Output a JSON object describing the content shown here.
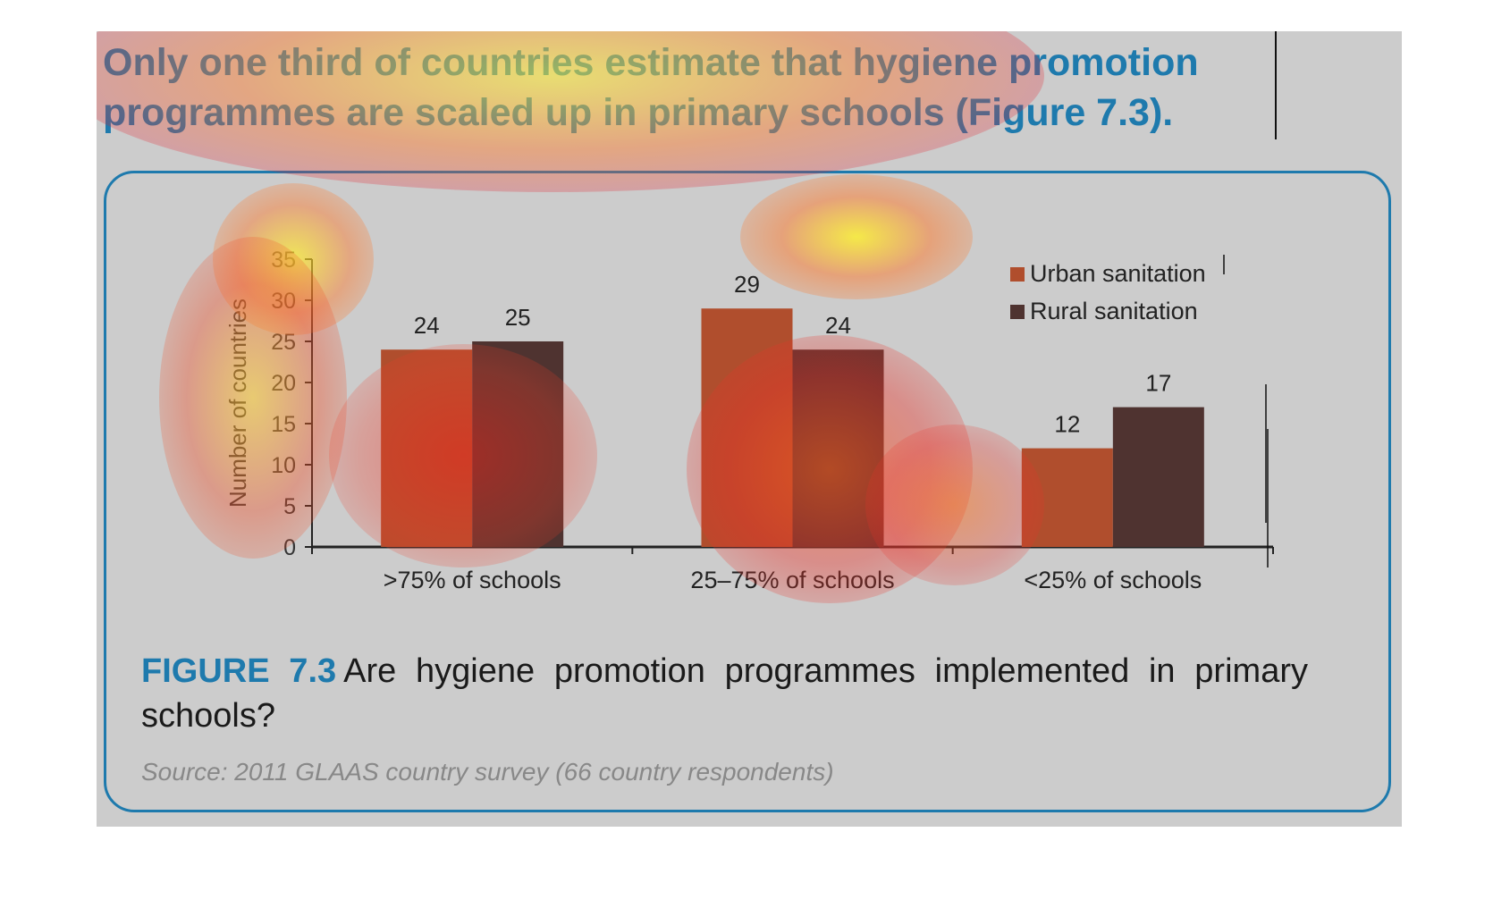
{
  "headline": "Only one third of countries estimate that hygiene promotion programmes are scaled up in primary schools (Figure 7.3).",
  "figure": {
    "label": "FIGURE 7.3",
    "caption": "Are hygiene promotion programmes implemented in primary schools?",
    "source": "Source: 2011 GLAAS country survey (66 country respondents)"
  },
  "colors": {
    "accent": "#1e7aad",
    "urban": "#b04e2d",
    "rural": "#4f3330",
    "axis": "#222222"
  },
  "chart_data": {
    "type": "bar",
    "categories": [
      ">75% of schools",
      "25–75% of schools",
      "<25% of schools"
    ],
    "series": [
      {
        "name": "Urban sanitation",
        "values": [
          24,
          29,
          12
        ]
      },
      {
        "name": "Rural sanitation",
        "values": [
          25,
          24,
          17
        ]
      }
    ],
    "ylabel": "Number of countries",
    "ylim": [
      0,
      35
    ],
    "yticks": [
      "0",
      "5",
      "10",
      "15",
      "20",
      "25",
      "30",
      "35"
    ],
    "data_labels": [
      [
        "24",
        "29",
        "12"
      ],
      [
        "25",
        "24",
        "17"
      ]
    ],
    "legend_position": "top-right",
    "grid": false
  }
}
